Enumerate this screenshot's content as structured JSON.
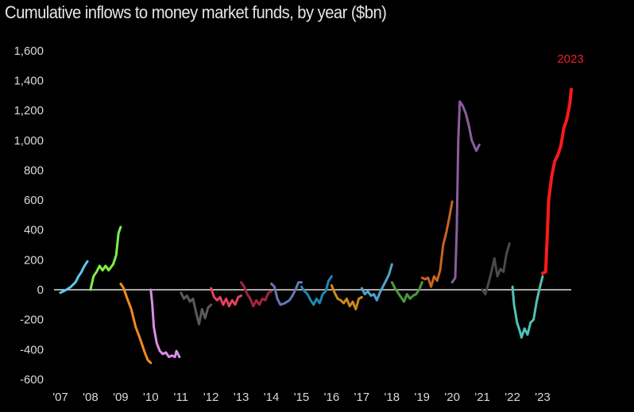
{
  "title": "Cumulative inflows to money market funds, by year ($bn)",
  "annotation": {
    "text": "2023",
    "color": "#e8212b"
  },
  "chart_data": {
    "type": "line",
    "title": "Cumulative inflows to money market funds, by year ($bn)",
    "xlabel": "",
    "ylabel": "$bn",
    "ylim": [
      -600,
      1600
    ],
    "yticks": [
      1600,
      1400,
      1200,
      1000,
      800,
      600,
      400,
      200,
      0,
      -200,
      -400,
      -600
    ],
    "ytick_labels": [
      "1,600",
      "1,400",
      "1,200",
      "1,000",
      "800",
      "600",
      "400",
      "200",
      "0",
      "-200",
      "-400",
      "-600"
    ],
    "xtick_labels": [
      "'07",
      "'08",
      "'09",
      "'10",
      "'11",
      "'12",
      "'13",
      "'14",
      "'15",
      "'16",
      "'17",
      "'18",
      "'19",
      "'20",
      "'21",
      "'22",
      "'23"
    ],
    "grid": false,
    "zero_line": true,
    "legend": "none",
    "annotations": [
      {
        "text": "2023",
        "x": "2023 end",
        "y": 1400
      }
    ],
    "series": [
      {
        "name": "2007",
        "color": "#5bc8f0",
        "points": [
          [
            0,
            -20
          ],
          [
            0.1,
            -10
          ],
          [
            0.2,
            0
          ],
          [
            0.35,
            20
          ],
          [
            0.5,
            50
          ],
          [
            0.6,
            90
          ],
          [
            0.7,
            120
          ],
          [
            0.8,
            160
          ],
          [
            0.9,
            190
          ]
        ]
      },
      {
        "name": "2008",
        "color": "#7ef04a",
        "points": [
          [
            0,
            0
          ],
          [
            0.1,
            90
          ],
          [
            0.2,
            120
          ],
          [
            0.3,
            160
          ],
          [
            0.4,
            130
          ],
          [
            0.5,
            160
          ],
          [
            0.6,
            130
          ],
          [
            0.75,
            170
          ],
          [
            0.85,
            230
          ],
          [
            0.93,
            380
          ],
          [
            1,
            420
          ]
        ]
      },
      {
        "name": "2009",
        "color": "#f58a1f",
        "points": [
          [
            0,
            40
          ],
          [
            0.1,
            10
          ],
          [
            0.2,
            -50
          ],
          [
            0.35,
            -130
          ],
          [
            0.5,
            -250
          ],
          [
            0.65,
            -330
          ],
          [
            0.8,
            -420
          ],
          [
            0.9,
            -470
          ],
          [
            1,
            -490
          ]
        ]
      },
      {
        "name": "2010",
        "color": "#d88ee6",
        "points": [
          [
            0,
            0
          ],
          [
            0.05,
            -100
          ],
          [
            0.1,
            -250
          ],
          [
            0.2,
            -360
          ],
          [
            0.3,
            -410
          ],
          [
            0.4,
            -430
          ],
          [
            0.5,
            -420
          ],
          [
            0.6,
            -450
          ],
          [
            0.7,
            -440
          ],
          [
            0.8,
            -450
          ],
          [
            0.85,
            -410
          ],
          [
            0.95,
            -450
          ]
        ]
      },
      {
        "name": "2011",
        "color": "#5a5a5a",
        "points": [
          [
            0,
            -20
          ],
          [
            0.1,
            -60
          ],
          [
            0.2,
            -40
          ],
          [
            0.3,
            -80
          ],
          [
            0.4,
            -60
          ],
          [
            0.5,
            -150
          ],
          [
            0.6,
            -230
          ],
          [
            0.7,
            -130
          ],
          [
            0.8,
            -190
          ],
          [
            0.9,
            -120
          ],
          [
            1,
            -100
          ]
        ]
      },
      {
        "name": "2012",
        "color": "#e8405e",
        "points": [
          [
            0,
            10
          ],
          [
            0.1,
            -50
          ],
          [
            0.2,
            -70
          ],
          [
            0.3,
            -50
          ],
          [
            0.4,
            -100
          ],
          [
            0.5,
            -60
          ],
          [
            0.6,
            -110
          ],
          [
            0.7,
            -70
          ],
          [
            0.8,
            -100
          ],
          [
            0.9,
            -50
          ],
          [
            1,
            -40
          ]
        ]
      },
      {
        "name": "2013",
        "color": "#a2263f",
        "points": [
          [
            0,
            50
          ],
          [
            0.1,
            20
          ],
          [
            0.2,
            -30
          ],
          [
            0.3,
            -60
          ],
          [
            0.4,
            -110
          ],
          [
            0.5,
            -70
          ],
          [
            0.6,
            -100
          ],
          [
            0.7,
            -60
          ],
          [
            0.8,
            -70
          ],
          [
            0.9,
            -20
          ],
          [
            1,
            -10
          ]
        ]
      },
      {
        "name": "2014",
        "color": "#6677b3",
        "points": [
          [
            0,
            40
          ],
          [
            0.1,
            20
          ],
          [
            0.2,
            -60
          ],
          [
            0.3,
            -100
          ],
          [
            0.45,
            -90
          ],
          [
            0.6,
            -70
          ],
          [
            0.7,
            -40
          ],
          [
            0.8,
            0
          ],
          [
            0.9,
            50
          ],
          [
            1,
            50
          ]
        ]
      },
      {
        "name": "2015",
        "color": "#1f86b3",
        "points": [
          [
            0,
            20
          ],
          [
            0.1,
            -10
          ],
          [
            0.2,
            -30
          ],
          [
            0.3,
            -70
          ],
          [
            0.4,
            -100
          ],
          [
            0.5,
            -60
          ],
          [
            0.6,
            -90
          ],
          [
            0.7,
            -30
          ],
          [
            0.8,
            -10
          ],
          [
            0.9,
            60
          ],
          [
            1,
            90
          ]
        ]
      },
      {
        "name": "2016",
        "color": "#cc8a18",
        "points": [
          [
            0,
            30
          ],
          [
            0.1,
            -20
          ],
          [
            0.2,
            -60
          ],
          [
            0.3,
            -70
          ],
          [
            0.4,
            -90
          ],
          [
            0.5,
            -60
          ],
          [
            0.6,
            -110
          ],
          [
            0.7,
            -80
          ],
          [
            0.8,
            -130
          ],
          [
            0.9,
            -60
          ],
          [
            1,
            -50
          ]
        ]
      },
      {
        "name": "2017",
        "color": "#4fa3cc",
        "points": [
          [
            0,
            10
          ],
          [
            0.1,
            -30
          ],
          [
            0.2,
            -10
          ],
          [
            0.3,
            -40
          ],
          [
            0.4,
            -30
          ],
          [
            0.5,
            -70
          ],
          [
            0.6,
            -20
          ],
          [
            0.7,
            20
          ],
          [
            0.8,
            60
          ],
          [
            0.9,
            100
          ],
          [
            1,
            170
          ]
        ]
      },
      {
        "name": "2018",
        "color": "#4a9a3a",
        "points": [
          [
            0,
            50
          ],
          [
            0.1,
            10
          ],
          [
            0.2,
            -20
          ],
          [
            0.3,
            -50
          ],
          [
            0.4,
            -80
          ],
          [
            0.5,
            -30
          ],
          [
            0.6,
            -60
          ],
          [
            0.7,
            -40
          ],
          [
            0.8,
            -30
          ],
          [
            0.9,
            0
          ],
          [
            1,
            50
          ]
        ]
      },
      {
        "name": "2019",
        "color": "#c7661f",
        "points": [
          [
            0,
            80
          ],
          [
            0.1,
            70
          ],
          [
            0.2,
            80
          ],
          [
            0.3,
            20
          ],
          [
            0.4,
            90
          ],
          [
            0.5,
            60
          ],
          [
            0.6,
            130
          ],
          [
            0.7,
            300
          ],
          [
            0.8,
            380
          ],
          [
            0.9,
            480
          ],
          [
            1,
            590
          ]
        ]
      },
      {
        "name": "2020",
        "color": "#8a5e9e",
        "points": [
          [
            0,
            50
          ],
          [
            0.1,
            80
          ],
          [
            0.15,
            400
          ],
          [
            0.2,
            1000
          ],
          [
            0.25,
            1260
          ],
          [
            0.35,
            1230
          ],
          [
            0.45,
            1180
          ],
          [
            0.55,
            1100
          ],
          [
            0.65,
            1000
          ],
          [
            0.8,
            930
          ],
          [
            0.9,
            970
          ]
        ]
      },
      {
        "name": "2021",
        "color": "#4a4a4a",
        "points": [
          [
            0,
            0
          ],
          [
            0.1,
            -30
          ],
          [
            0.2,
            40
          ],
          [
            0.3,
            120
          ],
          [
            0.4,
            210
          ],
          [
            0.5,
            90
          ],
          [
            0.6,
            140
          ],
          [
            0.7,
            120
          ],
          [
            0.8,
            240
          ],
          [
            0.9,
            310
          ]
        ]
      },
      {
        "name": "2022",
        "color": "#4fc2b8",
        "points": [
          [
            0,
            20
          ],
          [
            0.05,
            -100
          ],
          [
            0.15,
            -220
          ],
          [
            0.25,
            -280
          ],
          [
            0.3,
            -320
          ],
          [
            0.4,
            -260
          ],
          [
            0.5,
            -300
          ],
          [
            0.6,
            -220
          ],
          [
            0.7,
            -200
          ],
          [
            0.8,
            -80
          ],
          [
            0.9,
            10
          ],
          [
            1,
            90
          ]
        ]
      },
      {
        "name": "2023",
        "color": "#ff1a1a",
        "points": [
          [
            0,
            110
          ],
          [
            0.1,
            120
          ],
          [
            0.15,
            350
          ],
          [
            0.2,
            600
          ],
          [
            0.3,
            760
          ],
          [
            0.4,
            860
          ],
          [
            0.5,
            900
          ],
          [
            0.6,
            960
          ],
          [
            0.7,
            1080
          ],
          [
            0.8,
            1140
          ],
          [
            0.9,
            1240
          ],
          [
            0.95,
            1340
          ]
        ]
      }
    ]
  }
}
